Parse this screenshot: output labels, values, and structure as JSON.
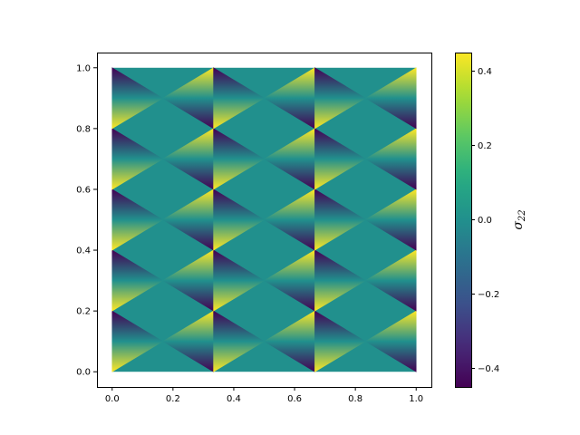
{
  "chart_data": {
    "type": "heatmap",
    "title": "",
    "xlabel": "",
    "ylabel": "",
    "xlim": [
      -0.05,
      1.05
    ],
    "ylim": [
      -0.05,
      1.05
    ],
    "x_ticks": [
      "0.0",
      "0.2",
      "0.4",
      "0.6",
      "0.8",
      "1.0"
    ],
    "y_ticks": [
      "0.0",
      "0.2",
      "0.4",
      "0.6",
      "0.8",
      "1.0"
    ],
    "mesh": {
      "columns": 3,
      "rows": 5,
      "x_range": [
        0,
        1
      ],
      "y_range": [
        0,
        1
      ],
      "field": "sigma_22 stress field on a triangulated mesh (linear per triangle)",
      "value_min": -0.45,
      "value_max": 0.45
    },
    "colorbar": {
      "label": "σ",
      "label_subscript": "22",
      "colormap": "viridis",
      "vmin": -0.45,
      "vmax": 0.45,
      "ticks": [
        "−0.4",
        "−0.2",
        "0.0",
        "0.2",
        "0.4"
      ],
      "tick_values": [
        -0.4,
        -0.2,
        0.0,
        0.2,
        0.4
      ]
    },
    "grid": false,
    "legend": "none"
  }
}
